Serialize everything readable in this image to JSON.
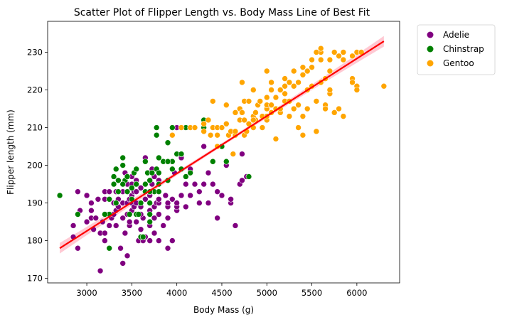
{
  "chart_data": {
    "type": "scatter",
    "title": "Scatter Plot of Flipper Length vs. Body Mass Line of Best Fit",
    "xlabel": "Body Mass (g)",
    "ylabel": "Flipper length (mm)",
    "xlim": [
      2565,
      6475
    ],
    "ylim": [
      168.8,
      238.2
    ],
    "xticks": [
      3000,
      3500,
      4000,
      4500,
      5000,
      5500,
      6000
    ],
    "xtick_labels": [
      "3000",
      "3500",
      "4000",
      "4500",
      "5000",
      "5500",
      "6000"
    ],
    "yticks": [
      170,
      180,
      190,
      200,
      210,
      220,
      230
    ],
    "ytick_labels": [
      "170",
      "180",
      "190",
      "200",
      "210",
      "220",
      "230"
    ],
    "grid": false,
    "legend_position": "outside-top-right",
    "series": [
      {
        "name": "Adelie",
        "color": "#800080",
        "points": [
          [
            2850,
            181
          ],
          [
            2850,
            184
          ],
          [
            2900,
            178
          ],
          [
            2900,
            187
          ],
          [
            2900,
            193
          ],
          [
            2925,
            188
          ],
          [
            3000,
            185
          ],
          [
            3000,
            192
          ],
          [
            3050,
            186
          ],
          [
            3050,
            188
          ],
          [
            3050,
            190
          ],
          [
            3075,
            183
          ],
          [
            3100,
            186
          ],
          [
            3125,
            191
          ],
          [
            3150,
            172
          ],
          [
            3150,
            182
          ],
          [
            3175,
            185
          ],
          [
            3200,
            180
          ],
          [
            3200,
            182
          ],
          [
            3200,
            187
          ],
          [
            3200,
            191
          ],
          [
            3250,
            184
          ],
          [
            3275,
            186
          ],
          [
            3300,
            187
          ],
          [
            3300,
            190
          ],
          [
            3300,
            195
          ],
          [
            3325,
            184
          ],
          [
            3325,
            188
          ],
          [
            3350,
            189
          ],
          [
            3350,
            191
          ],
          [
            3400,
            174
          ],
          [
            3400,
            186
          ],
          [
            3400,
            190
          ],
          [
            3400,
            193
          ],
          [
            3400,
            195
          ],
          [
            3425,
            182
          ],
          [
            3450,
            176
          ],
          [
            3450,
            187
          ],
          [
            3450,
            190
          ],
          [
            3450,
            193
          ],
          [
            3450,
            195
          ],
          [
            3475,
            184
          ],
          [
            3475,
            191
          ],
          [
            3500,
            188
          ],
          [
            3500,
            190
          ],
          [
            3500,
            192
          ],
          [
            3500,
            197
          ],
          [
            3525,
            189
          ],
          [
            3525,
            193
          ],
          [
            3550,
            185
          ],
          [
            3550,
            187
          ],
          [
            3550,
            193
          ],
          [
            3550,
            196
          ],
          [
            3575,
            180
          ],
          [
            3575,
            190
          ],
          [
            3600,
            181
          ],
          [
            3600,
            189
          ],
          [
            3600,
            194
          ],
          [
            3625,
            180
          ],
          [
            3625,
            186
          ],
          [
            3650,
            181
          ],
          [
            3650,
            191
          ],
          [
            3650,
            195
          ],
          [
            3700,
            180
          ],
          [
            3700,
            184
          ],
          [
            3700,
            188
          ],
          [
            3700,
            190
          ],
          [
            3700,
            192
          ],
          [
            3725,
            195
          ],
          [
            3750,
            182
          ],
          [
            3750,
            186
          ],
          [
            3750,
            189
          ],
          [
            3750,
            197
          ],
          [
            3775,
            190
          ],
          [
            3800,
            180
          ],
          [
            3800,
            187
          ],
          [
            3800,
            190
          ],
          [
            3800,
            191
          ],
          [
            3800,
            195
          ],
          [
            3850,
            184
          ],
          [
            3900,
            178
          ],
          [
            3900,
            186
          ],
          [
            3900,
            189
          ],
          [
            3900,
            190
          ],
          [
            3950,
            180
          ],
          [
            3950,
            191
          ],
          [
            3975,
            198
          ],
          [
            4000,
            188
          ],
          [
            4000,
            189
          ],
          [
            4000,
            190
          ],
          [
            4050,
            192
          ],
          [
            4100,
            189
          ],
          [
            4150,
            192
          ],
          [
            4200,
            195
          ],
          [
            4250,
            190
          ],
          [
            4250,
            193
          ],
          [
            4300,
            195
          ],
          [
            4350,
            190
          ],
          [
            4400,
            195
          ],
          [
            4450,
            186
          ],
          [
            4500,
            192
          ],
          [
            4600,
            190
          ],
          [
            4650,
            184
          ],
          [
            4700,
            195
          ],
          [
            4725,
            196
          ],
          [
            4775,
            197
          ],
          [
            3425,
            198
          ],
          [
            3475,
            185
          ],
          [
            3325,
            193
          ],
          [
            3650,
            202
          ],
          [
            3800,
            196
          ],
          [
            3950,
            199
          ],
          [
            4050,
            202
          ],
          [
            4150,
            199
          ],
          [
            4000,
            210
          ],
          [
            4300,
            205
          ],
          [
            4450,
            193
          ],
          [
            4550,
            200
          ],
          [
            4725,
            203
          ],
          [
            3600,
            183
          ],
          [
            3200,
            193
          ],
          [
            3725,
            199
          ],
          [
            3375,
            178
          ],
          [
            3500,
            195
          ],
          [
            3250,
            193
          ],
          [
            4100,
            195
          ],
          [
            4600,
            191
          ],
          [
            3600,
            187
          ],
          [
            4350,
            198
          ],
          [
            3875,
            192
          ],
          [
            3550,
            190
          ]
        ]
      },
      {
        "name": "Chinstrap",
        "color": "#008000",
        "points": [
          [
            2700,
            192
          ],
          [
            2900,
            187
          ],
          [
            3250,
            178
          ],
          [
            3250,
            191
          ],
          [
            3300,
            195
          ],
          [
            3325,
            190
          ],
          [
            3325,
            199
          ],
          [
            3350,
            193
          ],
          [
            3400,
            202
          ],
          [
            3400,
            200
          ],
          [
            3425,
            196
          ],
          [
            3450,
            193
          ],
          [
            3500,
            194
          ],
          [
            3525,
            198
          ],
          [
            3550,
            195
          ],
          [
            3600,
            181
          ],
          [
            3650,
            195
          ],
          [
            3675,
            198
          ],
          [
            3700,
            185
          ],
          [
            3700,
            187
          ],
          [
            3700,
            193
          ],
          [
            3700,
            196
          ],
          [
            3725,
            198
          ],
          [
            3750,
            193
          ],
          [
            3775,
            199
          ],
          [
            3800,
            202
          ],
          [
            3800,
            193
          ],
          [
            3850,
            201
          ],
          [
            3900,
            196
          ],
          [
            3950,
            199
          ],
          [
            3950,
            201
          ],
          [
            4000,
            203
          ],
          [
            4050,
            203
          ],
          [
            4100,
            197
          ],
          [
            4150,
            198
          ],
          [
            4300,
            212
          ],
          [
            4500,
            205
          ],
          [
            4550,
            201
          ],
          [
            4800,
            197
          ],
          [
            3775,
            210
          ],
          [
            3775,
            208
          ],
          [
            3500,
            191
          ],
          [
            3650,
            193
          ],
          [
            4400,
            201
          ],
          [
            3950,
            210
          ],
          [
            4050,
            199
          ],
          [
            3900,
            206
          ],
          [
            3600,
            190
          ],
          [
            3475,
            187
          ],
          [
            3625,
            181
          ],
          [
            3450,
            197
          ],
          [
            3550,
            187
          ],
          [
            3300,
            197
          ],
          [
            3650,
            201
          ],
          [
            3250,
            187
          ],
          [
            3800,
            195
          ],
          [
            3575,
            187
          ],
          [
            3900,
            201
          ],
          [
            3350,
            196
          ],
          [
            4300,
            210
          ],
          [
            3700,
            190
          ],
          [
            3550,
            199
          ],
          [
            3250,
            191
          ],
          [
            4100,
            210
          ],
          [
            3400,
            195
          ],
          [
            3800,
            198
          ],
          [
            3200,
            187
          ],
          [
            3700,
            193
          ]
        ]
      },
      {
        "name": "Gentoo",
        "color": "#FFA500",
        "points": [
          [
            3950,
            208
          ],
          [
            4050,
            210
          ],
          [
            4150,
            210
          ],
          [
            4200,
            210
          ],
          [
            4300,
            209
          ],
          [
            4350,
            212
          ],
          [
            4375,
            208
          ],
          [
            4400,
            210
          ],
          [
            4400,
            217
          ],
          [
            4450,
            210
          ],
          [
            4450,
            208
          ],
          [
            4500,
            210
          ],
          [
            4550,
            211
          ],
          [
            4575,
            208
          ],
          [
            4600,
            209
          ],
          [
            4625,
            203
          ],
          [
            4650,
            208
          ],
          [
            4650,
            214
          ],
          [
            4700,
            212
          ],
          [
            4700,
            215
          ],
          [
            4725,
            214
          ],
          [
            4750,
            208
          ],
          [
            4750,
            212
          ],
          [
            4750,
            217
          ],
          [
            4775,
            209
          ],
          [
            4800,
            211
          ],
          [
            4850,
            210
          ],
          [
            4850,
            213
          ],
          [
            4875,
            212
          ],
          [
            4900,
            216
          ],
          [
            4925,
            217
          ],
          [
            4950,
            213
          ],
          [
            5000,
            212
          ],
          [
            5000,
            215
          ],
          [
            5000,
            216
          ],
          [
            5000,
            218
          ],
          [
            5000,
            225
          ],
          [
            5050,
            214
          ],
          [
            5050,
            220
          ],
          [
            5100,
            215
          ],
          [
            5100,
            218
          ],
          [
            5150,
            214
          ],
          [
            5200,
            219
          ],
          [
            5200,
            221
          ],
          [
            5200,
            217
          ],
          [
            5250,
            222
          ],
          [
            5300,
            215
          ],
          [
            5300,
            221
          ],
          [
            5350,
            210
          ],
          [
            5350,
            216
          ],
          [
            5400,
            213
          ],
          [
            5400,
            208
          ],
          [
            5400,
            224
          ],
          [
            5450,
            215
          ],
          [
            5500,
            221
          ],
          [
            5500,
            228
          ],
          [
            5550,
            209
          ],
          [
            5550,
            217
          ],
          [
            5600,
            222
          ],
          [
            5600,
            230
          ],
          [
            5650,
            216
          ],
          [
            5650,
            223
          ],
          [
            5700,
            219
          ],
          [
            5700,
            225
          ],
          [
            5700,
            228
          ],
          [
            5750,
            214
          ],
          [
            5800,
            229
          ],
          [
            5800,
            215
          ],
          [
            5850,
            213
          ],
          [
            5850,
            230
          ],
          [
            5950,
            223
          ],
          [
            5950,
            229
          ],
          [
            6000,
            221
          ],
          [
            6000,
            230
          ],
          [
            6050,
            230
          ],
          [
            6300,
            221
          ],
          [
            4450,
            205
          ],
          [
            4725,
            222
          ],
          [
            4875,
            214
          ],
          [
            5050,
            222
          ],
          [
            5200,
            223
          ],
          [
            5300,
            225
          ],
          [
            5600,
            231
          ],
          [
            5700,
            220
          ],
          [
            5500,
            226
          ],
          [
            5400,
            226
          ],
          [
            5150,
            215
          ],
          [
            4850,
            220
          ],
          [
            4650,
            209
          ],
          [
            5850,
            228
          ],
          [
            5000,
            213
          ],
          [
            5100,
            207
          ],
          [
            5350,
            222
          ],
          [
            5750,
            230
          ],
          [
            5950,
            222
          ],
          [
            6000,
            220
          ],
          [
            5250,
            217
          ],
          [
            5450,
            220
          ],
          [
            5650,
            215
          ],
          [
            4550,
            216
          ],
          [
            4800,
            217
          ],
          [
            4950,
            210
          ],
          [
            5050,
            216
          ],
          [
            5250,
            213
          ],
          [
            5450,
            225
          ],
          [
            5550,
            230
          ],
          [
            4300,
            211
          ],
          [
            5150,
            220
          ],
          [
            4850,
            212
          ],
          [
            5600,
            228
          ]
        ]
      }
    ],
    "fit_line": {
      "name": "",
      "color": "#FF0000",
      "band_color": "#FFC0CB",
      "x": [
        2700,
        6300
      ],
      "y": [
        178.0,
        232.9
      ],
      "ci_halfwidth_ends": 1.4,
      "ci_halfwidth_mid": 0.45
    }
  }
}
